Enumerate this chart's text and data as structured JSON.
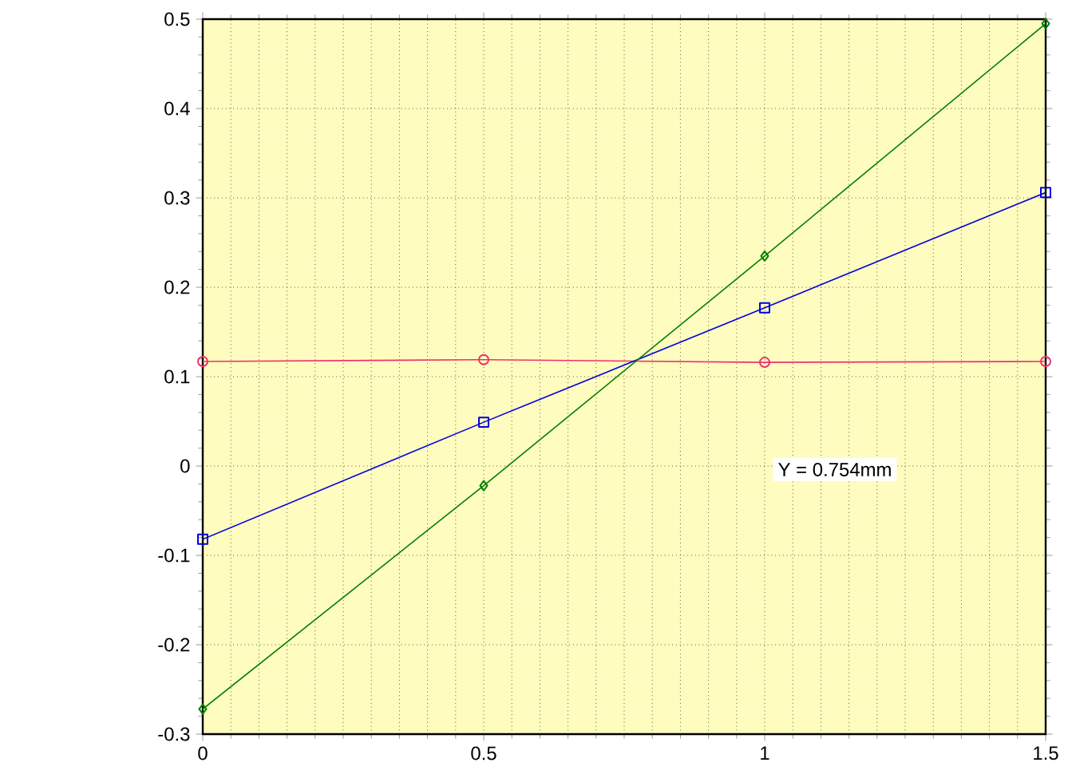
{
  "chart_data": {
    "type": "line",
    "x": [
      0,
      0.5,
      1,
      1.5
    ],
    "series": [
      {
        "color": "#f0306e",
        "marker": "circle",
        "values": [
          0.117,
          0.119,
          0.116,
          0.117
        ]
      },
      {
        "color": "#0000e0",
        "marker": "square",
        "values": [
          -0.082,
          0.049,
          0.177,
          0.306
        ]
      },
      {
        "color": "#008000",
        "marker": "diamond",
        "values": [
          -0.272,
          -0.022,
          0.235,
          0.495
        ]
      }
    ],
    "xlim": [
      0,
      1.5
    ],
    "ylim": [
      -0.3,
      0.5
    ],
    "xticks": [
      0,
      0.5,
      1,
      1.5
    ],
    "yticks": [
      -0.3,
      -0.2,
      -0.1,
      0,
      0.1,
      0.2,
      0.3,
      0.4,
      0.5
    ],
    "grid": true,
    "annotations": [
      "Y = 0.754mm"
    ]
  }
}
